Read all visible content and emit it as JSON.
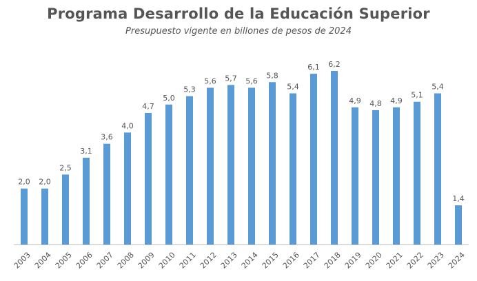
{
  "chart_data": {
    "type": "bar",
    "title": "Programa Desarrollo de la Educación Superior",
    "subtitle": "Presupuesto vigente en billones de pesos de 2024",
    "xlabel": "",
    "ylabel": "",
    "categories": [
      "2003",
      "2004",
      "2005",
      "2006",
      "2007",
      "2008",
      "2009",
      "2010",
      "2011",
      "2012",
      "2013",
      "2014",
      "2015",
      "2016",
      "2017",
      "2018",
      "2019",
      "2020",
      "2021",
      "2022",
      "2023",
      "2024"
    ],
    "values": [
      2.0,
      2.0,
      2.5,
      3.1,
      3.6,
      4.0,
      4.7,
      5.0,
      5.3,
      5.6,
      5.7,
      5.6,
      5.8,
      5.4,
      6.1,
      6.2,
      4.9,
      4.8,
      4.9,
      5.1,
      5.4,
      1.4
    ],
    "value_labels": [
      "2,0",
      "2,0",
      "2,5",
      "3,1",
      "3,6",
      "4,0",
      "4,7",
      "5,0",
      "5,3",
      "5,6",
      "5,7",
      "5,6",
      "5,8",
      "5,4",
      "6,1",
      "6,2",
      "4,9",
      "4,8",
      "4,9",
      "5,1",
      "5,4",
      "1,4"
    ],
    "ylim": [
      0,
      6.2
    ],
    "grid": false,
    "legend": "none",
    "bar_color": "#5B9BD5",
    "axis_color": "#BFBFBF",
    "text_color": "#555555"
  }
}
